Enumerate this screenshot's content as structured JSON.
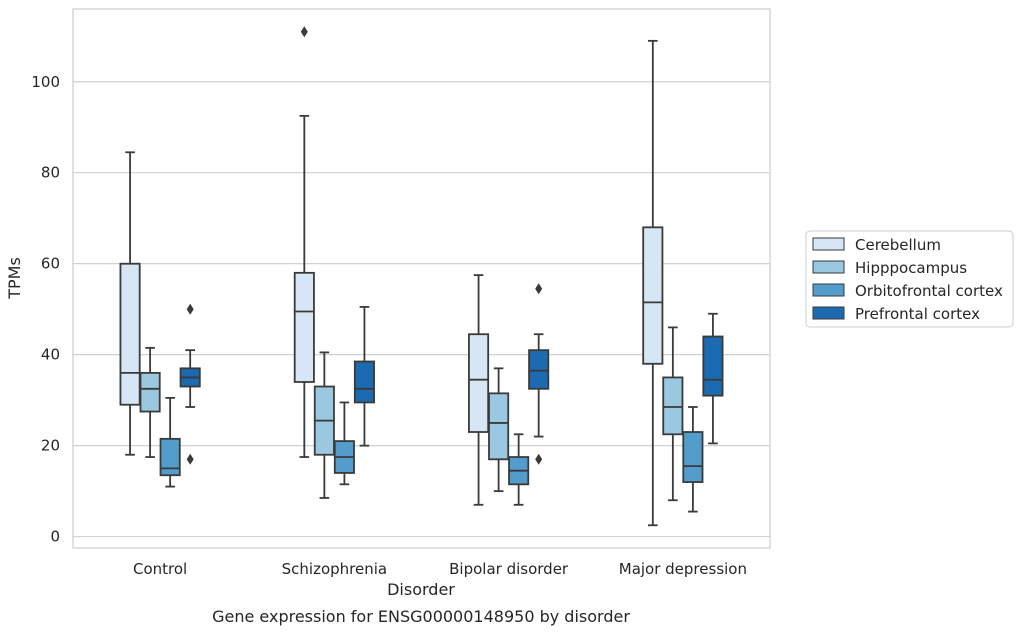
{
  "chart_data": {
    "type": "boxplot",
    "title": "",
    "caption": "Gene expression for ENSG00000148950 by disorder",
    "xlabel": "Disorder",
    "ylabel": "TPMs",
    "ylim": [
      -2.5,
      116
    ],
    "yticks": [
      0,
      20,
      40,
      60,
      80,
      100
    ],
    "grid": "horizontal",
    "legend_position": "right",
    "categories": [
      "Control",
      "Schizophrenia",
      "Bipolar disorder",
      "Major depression"
    ],
    "series": [
      {
        "name": "Cerebellum",
        "color": "#d6e6f4",
        "boxes": [
          {
            "whislo": 18,
            "q1": 29,
            "med": 36,
            "q3": 60,
            "whishi": 84.5,
            "fliers": []
          },
          {
            "whislo": 17.5,
            "q1": 34,
            "med": 49.5,
            "q3": 58,
            "whishi": 92.5,
            "fliers": [
              111
            ]
          },
          {
            "whislo": 7,
            "q1": 23,
            "med": 34.5,
            "q3": 44.5,
            "whishi": 57.5,
            "fliers": []
          },
          {
            "whislo": 2.5,
            "q1": 38,
            "med": 51.5,
            "q3": 68,
            "whishi": 109,
            "fliers": []
          }
        ]
      },
      {
        "name": "Hipppocampus",
        "color": "#9ac8e0",
        "boxes": [
          {
            "whislo": 17.5,
            "q1": 27.5,
            "med": 32.5,
            "q3": 36,
            "whishi": 41.5,
            "fliers": []
          },
          {
            "whislo": 8.5,
            "q1": 18,
            "med": 25.5,
            "q3": 33,
            "whishi": 40.5,
            "fliers": []
          },
          {
            "whislo": 10,
            "q1": 17,
            "med": 25,
            "q3": 31.5,
            "whishi": 37,
            "fliers": []
          },
          {
            "whislo": 8,
            "q1": 22.5,
            "med": 28.5,
            "q3": 35,
            "whishi": 46,
            "fliers": []
          }
        ]
      },
      {
        "name": "Orbitofrontal cortex",
        "color": "#529dcc",
        "boxes": [
          {
            "whislo": 11,
            "q1": 13.5,
            "med": 15,
            "q3": 21.5,
            "whishi": 30.5,
            "fliers": []
          },
          {
            "whislo": 11.5,
            "q1": 14,
            "med": 17.5,
            "q3": 21,
            "whishi": 29.5,
            "fliers": []
          },
          {
            "whislo": 7,
            "q1": 11.5,
            "med": 14.5,
            "q3": 17.5,
            "whishi": 22.5,
            "fliers": []
          },
          {
            "whislo": 5.5,
            "q1": 12,
            "med": 15.5,
            "q3": 23,
            "whishi": 28.5,
            "fliers": []
          }
        ]
      },
      {
        "name": "Prefrontal cortex",
        "color": "#1c6aaf",
        "boxes": [
          {
            "whislo": 28.5,
            "q1": 33,
            "med": 35,
            "q3": 37,
            "whishi": 41,
            "fliers": [
              17,
              50
            ]
          },
          {
            "whislo": 20,
            "q1": 29.5,
            "med": 32.5,
            "q3": 38.5,
            "whishi": 50.5,
            "fliers": []
          },
          {
            "whislo": 22,
            "q1": 32.5,
            "med": 36.5,
            "q3": 41,
            "whishi": 44.5,
            "fliers": [
              17,
              54.5
            ]
          },
          {
            "whislo": 20.5,
            "q1": 31,
            "med": 34.5,
            "q3": 44,
            "whishi": 49,
            "fliers": []
          }
        ]
      }
    ]
  }
}
